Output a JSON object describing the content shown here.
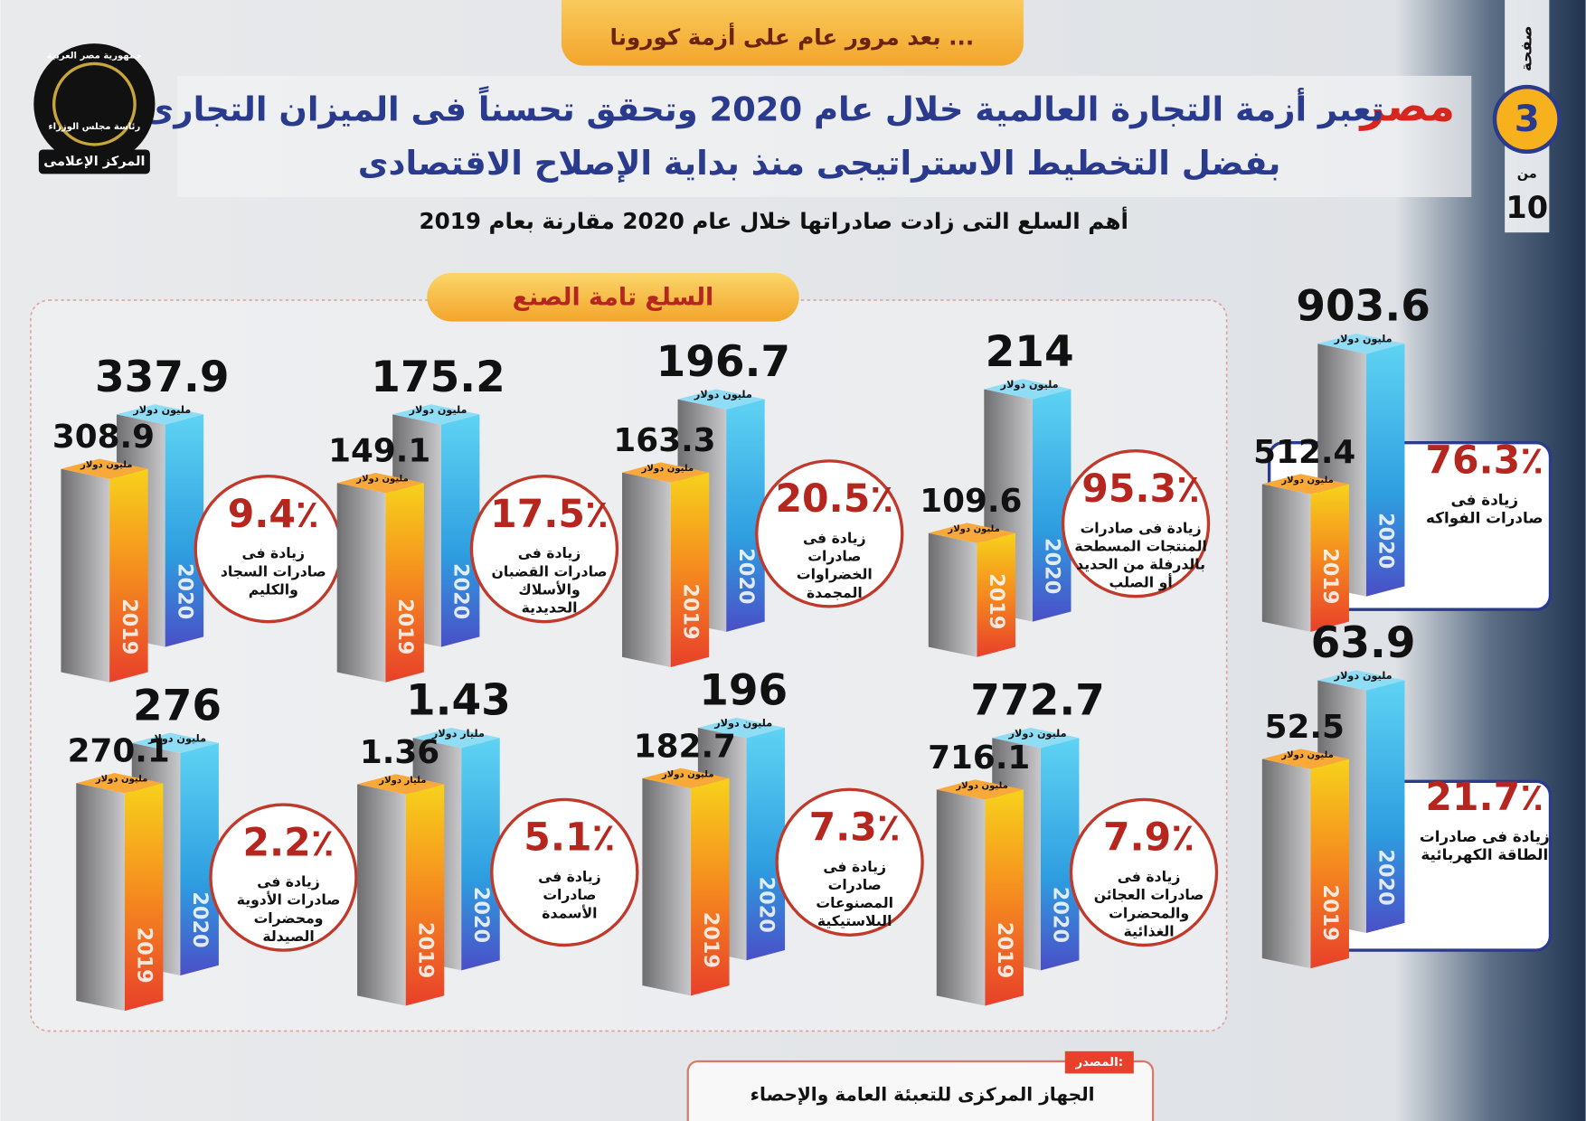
{
  "header": {
    "badge": "بعد مرور عام على أزمة كورونا ...",
    "title_highlight": "مصر",
    "title_line1": "تعبر أزمة التجارة العالمية خلال عام 2020 وتحقق تحسناً فى الميزان التجارى",
    "title_line2": "بفضل التخطيط الاستراتيجى منذ بداية الإصلاح الاقتصادى",
    "subtitle": "أهم السلع التى زادت صادراتها خلال عام 2020 مقارنة بعام 2019",
    "logo_lines": [
      "جمهورية مصر العربية",
      "رئاسة مجلس الوزراء",
      "المركز الإعلامى"
    ]
  },
  "page": {
    "label": "صفحة",
    "number": 3,
    "of": "من",
    "total": 10
  },
  "years": [
    "2019",
    "2020"
  ],
  "section_title": "السلع تامة الصنع",
  "panels": [
    {
      "v2019": 308.9,
      "v2020": 337.9,
      "unit": "مليون دولار",
      "pct": "9.4٪",
      "desc": [
        "زيادة فى",
        "صادرات السجاد",
        "والكليم"
      ]
    },
    {
      "v2019": 149.1,
      "v2020": 175.2,
      "unit": "مليون دولار",
      "pct": "17.5٪",
      "desc": [
        "زيادة فى",
        "صادرات القضبان",
        "والأسلاك",
        "الحديدية"
      ]
    },
    {
      "v2019": 163.3,
      "v2020": 196.7,
      "unit": "مليون دولار",
      "pct": "20.5٪",
      "desc": [
        "زيادة فى",
        "صادرات",
        "الخضراوات",
        "المجمدة"
      ]
    },
    {
      "v2019": 109.6,
      "v2020": 214,
      "unit": "مليون دولار",
      "pct": "95.3٪",
      "desc": [
        "زيادة فى صادرات",
        "المنتجات المسطحة",
        "بالدرفلة من الحديد",
        "أو الصلب"
      ]
    },
    {
      "v2019": 270.1,
      "v2020": 276,
      "unit": "مليون دولار",
      "pct": "2.2٪",
      "desc": [
        "زيادة فى",
        "صادرات الأدوية",
        "ومحضرات",
        "الصيدلة"
      ]
    },
    {
      "v2019": 1.36,
      "v2020": 1.43,
      "unit": "مليار دولار",
      "pct": "5.1٪",
      "desc": [
        "زيادة فى",
        "صادرات",
        "الأسمدة"
      ]
    },
    {
      "v2019": 182.7,
      "v2020": 196,
      "unit": "مليون دولار",
      "pct": "7.3٪",
      "desc": [
        "زيادة فى",
        "صادرات",
        "المصنوعات",
        "البلاستيكية"
      ]
    },
    {
      "v2019": 716.1,
      "v2020": 772.7,
      "unit": "مليون دولار",
      "pct": "7.9٪",
      "desc": [
        "زيادة فى",
        "صادرات العجائن",
        "والمحضرات",
        "الغذائية"
      ]
    }
  ],
  "side_panels": [
    {
      "v2019": 512.4,
      "v2020": 903.6,
      "unit": "مليون دولار",
      "pct": "76.3٪",
      "desc": [
        "زيادة فى",
        "صادرات الفواكه"
      ]
    },
    {
      "v2019": 52.5,
      "v2020": 63.9,
      "unit": "مليون دولار",
      "pct": "21.7٪",
      "desc": [
        "زيادة فى صادرات",
        "الطاقة الكهربائية"
      ]
    }
  ],
  "source": {
    "label": "المصدر:",
    "text": "الجهاز المركزى للتعبئة العامة والإحصاء"
  }
}
